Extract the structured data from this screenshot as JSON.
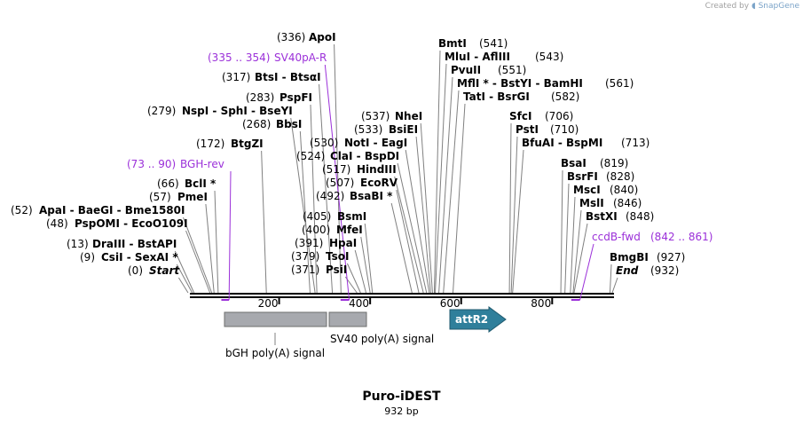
{
  "credit": {
    "prefix": "Created by",
    "brand": "SnapGene"
  },
  "map": {
    "title": "Puro-iDEST",
    "length": 932,
    "length_label": "932 bp"
  },
  "axis": {
    "ticks": [
      200,
      400,
      600,
      800
    ]
  },
  "colors": {
    "line": "#000000",
    "leader": "#808080",
    "primer": "#9b30d9",
    "feature": "#a7a9ae",
    "attr": "#2f7f9b"
  },
  "sites": [
    {
      "id": "apoi",
      "left": "(336)",
      "name": "ApoI",
      "pos": 336
    },
    {
      "id": "btsi",
      "left": "(317)",
      "name": "BtsI - BtsαI",
      "pos": 317
    },
    {
      "id": "pspfi",
      "left": "(283)",
      "name": "PspFI",
      "pos": 283
    },
    {
      "id": "nspi",
      "left": "(279)",
      "name": "NspI - SphI - BseYI",
      "pos": 279
    },
    {
      "id": "bbsi",
      "left": "(268)",
      "name": "BbsI",
      "pos": 268
    },
    {
      "id": "btgzi",
      "left": "(172)",
      "name": "BtgZI",
      "pos": 172
    },
    {
      "id": "bcli",
      "left": "(66)",
      "name": "BclI *",
      "pos": 66
    },
    {
      "id": "pmei",
      "left": "(57)",
      "name": "PmeI",
      "pos": 57
    },
    {
      "id": "apai",
      "left": "(52)",
      "name": "ApaI - BaeGI - Bme1580I",
      "pos": 52
    },
    {
      "id": "pspomi",
      "left": "(48)",
      "name": "PspOMI - EcoO109I",
      "pos": 48
    },
    {
      "id": "draiii",
      "left": "(13)",
      "name": "DraIII - BstAPI",
      "pos": 13
    },
    {
      "id": "csii",
      "left": "(9)",
      "name": "CsiI - SexAI *",
      "pos": 9
    },
    {
      "id": "start",
      "left": "(0)",
      "name": "Start",
      "pos": 0
    },
    {
      "id": "nhei",
      "left": "(537)",
      "name": "NheI",
      "pos": 537
    },
    {
      "id": "bsiei",
      "left": "(533)",
      "name": "BsiEI",
      "pos": 533
    },
    {
      "id": "noti",
      "left": "(530)",
      "name": "NotI - EagI",
      "pos": 530
    },
    {
      "id": "clai",
      "left": "(524)",
      "name": "ClaI - BspDI",
      "pos": 524
    },
    {
      "id": "hindiii",
      "left": "(517)",
      "name": "HindIII",
      "pos": 517
    },
    {
      "id": "ecorv",
      "left": "(507)",
      "name": "EcoRV",
      "pos": 507
    },
    {
      "id": "bsabi",
      "left": "(492)",
      "name": "BsaBI *",
      "pos": 492
    },
    {
      "id": "bsmi",
      "left": "(405)",
      "name": "BsmI",
      "pos": 405
    },
    {
      "id": "mfei",
      "left": "(400)",
      "name": "MfeI",
      "pos": 400
    },
    {
      "id": "hpai",
      "left": "(391)",
      "name": "HpaI",
      "pos": 391
    },
    {
      "id": "tsoi",
      "left": "(379)",
      "name": "TsoI",
      "pos": 379
    },
    {
      "id": "psii",
      "left": "(371)",
      "name": "PsiI",
      "pos": 371
    },
    {
      "id": "bmti",
      "name": "BmtI",
      "right": "(541)",
      "pos": 541
    },
    {
      "id": "mlui",
      "name": "MluI - AflIII",
      "right": "(543)",
      "pos": 543
    },
    {
      "id": "pvuii",
      "name": "PvuII",
      "right": "(551)",
      "pos": 551
    },
    {
      "id": "mfli",
      "name": "MflI * - BstYI - BamHI",
      "right": "(561)",
      "pos": 561
    },
    {
      "id": "tati",
      "name": "TatI - BsrGI",
      "right": "(582)",
      "pos": 582
    },
    {
      "id": "sfci",
      "name": "SfcI",
      "right": "(706)",
      "pos": 706
    },
    {
      "id": "psti",
      "name": "PstI",
      "right": "(710)",
      "pos": 710
    },
    {
      "id": "bfuai",
      "name": "BfuAI - BspMI",
      "right": "(713)",
      "pos": 713
    },
    {
      "id": "bsai",
      "name": "BsaI",
      "right": "(819)",
      "pos": 819
    },
    {
      "id": "bsrfi",
      "name": "BsrFI",
      "right": "(828)",
      "pos": 828
    },
    {
      "id": "msci",
      "name": "MscI",
      "right": "(840)",
      "pos": 840
    },
    {
      "id": "msli",
      "name": "MslI",
      "right": "(846)",
      "pos": 846
    },
    {
      "id": "bstxi",
      "name": "BstXI",
      "right": "(848)",
      "pos": 848
    },
    {
      "id": "bmgbi",
      "name": "BmgBI",
      "right": "(927)",
      "pos": 927
    },
    {
      "id": "end",
      "name": "End",
      "right": "(932)",
      "pos": 932
    }
  ],
  "primers": [
    {
      "id": "sv40pa-r",
      "range": "(335 .. 354)",
      "name": "SV40pA-R",
      "start": 335,
      "end": 354
    },
    {
      "id": "bgh-rev",
      "range": "(73 .. 90)",
      "name": "BGH-rev",
      "start": 73,
      "end": 90
    },
    {
      "id": "ccdb-fwd",
      "name": "ccdB-fwd",
      "range": "(842 .. 861)",
      "start": 842,
      "end": 861
    }
  ],
  "features": [
    {
      "id": "bgh",
      "label": "bGH poly(A) signal",
      "start": 78,
      "end": 302
    },
    {
      "id": "sv40",
      "label": "SV40 poly(A) signal",
      "start": 306,
      "end": 387
    },
    {
      "id": "attr2",
      "label": "attR2",
      "start": 583,
      "end": 708
    }
  ]
}
